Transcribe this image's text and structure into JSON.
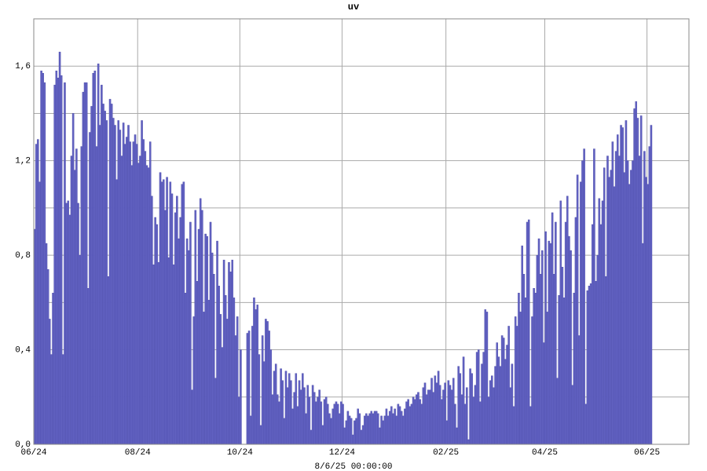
{
  "chart_data": {
    "type": "bar",
    "title": "uv",
    "xlabel": "8/6/25 00:00:00",
    "color": "#6262c2",
    "title_color": "#cc00cc",
    "grid": true,
    "ylim": [
      0,
      1.8
    ],
    "yticks": [
      {
        "value": 0,
        "label": "0,0"
      },
      {
        "value": 0.4,
        "label": "0,4"
      },
      {
        "value": 0.8,
        "label": "0,8"
      },
      {
        "value": 1.2,
        "label": "1,2"
      },
      {
        "value": 1.6,
        "label": "1,6"
      }
    ],
    "minor_yticks": [
      0.2,
      0.6,
      1.0,
      1.4,
      1.8
    ],
    "categories": [
      "06/24",
      null,
      null,
      null,
      null,
      null,
      null,
      null,
      null,
      null,
      null,
      null,
      null,
      null,
      null,
      null,
      null,
      null,
      null,
      null,
      null,
      null,
      null,
      null,
      null,
      null,
      null,
      null,
      null,
      null,
      null,
      null,
      null,
      null,
      null,
      null,
      null,
      null,
      null,
      null,
      null,
      null,
      null,
      null,
      null,
      null,
      null,
      null,
      null,
      null,
      null,
      null,
      null,
      null,
      null,
      null,
      null,
      null,
      null,
      null,
      null,
      null,
      "08/24",
      null,
      null,
      null,
      null,
      null,
      null,
      null,
      null,
      null,
      null,
      null,
      null,
      null,
      null,
      null,
      null,
      null,
      null,
      null,
      null,
      null,
      null,
      null,
      null,
      null,
      null,
      null,
      null,
      null,
      null,
      null,
      null,
      null,
      null,
      null,
      null,
      null,
      null,
      null,
      null,
      null,
      null,
      null,
      null,
      null,
      null,
      null,
      null,
      null,
      null,
      null,
      null,
      null,
      null,
      null,
      null,
      null,
      null,
      null,
      null,
      "10/24",
      null,
      null,
      null,
      null,
      null,
      null,
      null,
      null,
      null,
      null,
      null,
      null,
      null,
      null,
      null,
      null,
      null,
      null,
      null,
      null,
      null,
      null,
      null,
      null,
      null,
      null,
      null,
      null,
      null,
      null,
      null,
      null,
      null,
      null,
      null,
      null,
      null,
      null,
      null,
      null,
      null,
      null,
      null,
      null,
      null,
      null,
      null,
      null,
      null,
      null,
      null,
      null,
      null,
      null,
      null,
      null,
      null,
      null,
      null,
      null,
      "12/24",
      null,
      null,
      null,
      null,
      null,
      null,
      null,
      null,
      null,
      null,
      null,
      null,
      null,
      null,
      null,
      null,
      null,
      null,
      null,
      null,
      null,
      null,
      null,
      null,
      null,
      null,
      null,
      null,
      null,
      null,
      null,
      null,
      null,
      null,
      null,
      null,
      null,
      null,
      null,
      null,
      null,
      null,
      null,
      null,
      null,
      null,
      null,
      null,
      null,
      null,
      null,
      null,
      null,
      null,
      null,
      null,
      null,
      null,
      null,
      null,
      null,
      "02/25",
      null,
      null,
      null,
      null,
      null,
      null,
      null,
      null,
      null,
      null,
      null,
      null,
      null,
      null,
      null,
      null,
      null,
      null,
      null,
      null,
      null,
      null,
      null,
      null,
      null,
      null,
      null,
      null,
      null,
      null,
      null,
      null,
      null,
      null,
      null,
      null,
      null,
      null,
      null,
      null,
      null,
      null,
      null,
      null,
      null,
      null,
      null,
      null,
      null,
      null,
      null,
      null,
      null,
      null,
      null,
      null,
      null,
      null,
      "04/25",
      null,
      null,
      null,
      null,
      null,
      null,
      null,
      null,
      null,
      null,
      null,
      null,
      null,
      null,
      null,
      null,
      null,
      null,
      null,
      null,
      null,
      null,
      null,
      null,
      null,
      null,
      null,
      null,
      null,
      null,
      null,
      null,
      null,
      null,
      null,
      null,
      null,
      null,
      null,
      null,
      null,
      null,
      null,
      null,
      null,
      null,
      null,
      null,
      null,
      null,
      null,
      null,
      null,
      null,
      null,
      null,
      null,
      null,
      null,
      null,
      "06/25",
      null,
      null
    ],
    "values": [
      0.91,
      1.27,
      1.29,
      1.11,
      1.58,
      1.57,
      1.53,
      0.85,
      0.74,
      0.53,
      0.38,
      0.64,
      1.52,
      1.58,
      1.55,
      1.66,
      1.56,
      0.38,
      1.53,
      1.02,
      1.03,
      0.97,
      1.22,
      1.4,
      1.16,
      1.25,
      1.02,
      0.8,
      1.26,
      1.49,
      1.53,
      1.53,
      0.66,
      1.32,
      1.43,
      1.57,
      1.58,
      1.26,
      1.61,
      1.35,
      1.52,
      1.44,
      1.41,
      1.37,
      0.71,
      1.46,
      1.44,
      1.38,
      1.35,
      1.12,
      1.37,
      1.33,
      1.22,
      1.36,
      1.27,
      1.3,
      1.35,
      1.28,
      1.18,
      1.28,
      1.31,
      1.27,
      1.19,
      1.22,
      1.37,
      1.29,
      1.24,
      1.18,
      1.17,
      1.28,
      1.05,
      0.76,
      0.96,
      0.93,
      0.77,
      1.15,
      1.11,
      1.12,
      0.99,
      1.13,
      0.79,
      1.11,
      1.06,
      0.76,
      0.98,
      1.05,
      0.87,
      0.96,
      1.1,
      1.11,
      0.64,
      0.87,
      0.82,
      0.94,
      0.23,
      0.54,
      0.99,
      0.69,
      0.91,
      1.04,
      0.99,
      0.56,
      0.89,
      0.88,
      0.61,
      0.94,
      0.81,
      0.72,
      0.28,
      0.86,
      0.67,
      0.55,
      0.41,
      0.78,
      0.63,
      0.53,
      0.77,
      0.73,
      0.78,
      0.62,
      0.46,
      0.54,
      0.2,
      0.4,
      0,
      0,
      0,
      0.47,
      0.48,
      0.12,
      0.5,
      0.62,
      0.57,
      0.59,
      0.38,
      0.08,
      0.46,
      0.35,
      0.53,
      0.52,
      0.48,
      0.4,
      0.21,
      0.31,
      0.34,
      0.21,
      0.18,
      0.32,
      0.27,
      0.11,
      0.31,
      0.24,
      0.3,
      0.27,
      0.15,
      0.22,
      0.3,
      0.16,
      0.27,
      0.23,
      0.3,
      0.24,
      0.13,
      0.25,
      0.2,
      0.06,
      0.25,
      0.22,
      0.18,
      0.2,
      0.23,
      0.18,
      0.08,
      0.19,
      0.2,
      0.17,
      0.13,
      0.11,
      0.15,
      0.17,
      0.18,
      0.17,
      0.13,
      0.18,
      0.17,
      0.07,
      0.1,
      0.14,
      0.12,
      0.11,
      0.04,
      0.1,
      0.11,
      0.15,
      0.13,
      0.06,
      0.08,
      0.12,
      0.13,
      0.12,
      0.13,
      0.14,
      0.13,
      0.14,
      0.14,
      0.13,
      0.07,
      0.12,
      0.1,
      0.12,
      0.15,
      0.12,
      0.14,
      0.16,
      0.13,
      0.15,
      0.12,
      0.17,
      0.16,
      0.14,
      0.12,
      0.15,
      0.18,
      0.19,
      0.16,
      0.17,
      0.2,
      0.19,
      0.21,
      0.22,
      0.19,
      0.17,
      0.24,
      0.26,
      0.21,
      0.23,
      0.23,
      0.28,
      0.22,
      0.29,
      0.26,
      0.31,
      0.25,
      0.19,
      0.23,
      0.26,
      0.1,
      0.27,
      0.25,
      0.23,
      0.28,
      0.17,
      0.07,
      0.33,
      0.3,
      0.21,
      0.37,
      0.17,
      0.24,
      0.02,
      0.32,
      0.3,
      0.2,
      0.25,
      0.39,
      0.4,
      0.18,
      0.34,
      0.39,
      0.57,
      0.56,
      0.2,
      0.27,
      0.29,
      0.24,
      0.33,
      0.43,
      0.37,
      0.33,
      0.46,
      0.45,
      0.36,
      0.42,
      0.5,
      0.24,
      0.34,
      0.16,
      0.54,
      0.5,
      0.64,
      0.56,
      0.84,
      0.72,
      0.62,
      0.94,
      0.95,
      0.16,
      0.54,
      0.66,
      0.64,
      0.8,
      0.87,
      0.72,
      0.82,
      0.43,
      0.9,
      0.56,
      0.86,
      0.85,
      0.98,
      0.72,
      0.94,
      0.28,
      0.63,
      1.03,
      0.75,
      0.62,
      0.94,
      1.05,
      0.88,
      0.82,
      0.25,
      0.64,
      0.96,
      1.14,
      0.46,
      1.11,
      1.2,
      1.25,
      0.17,
      0.65,
      0.67,
      0.68,
      0.93,
      1.25,
      0.69,
      0.8,
      1.04,
      0.93,
      1.03,
      1.17,
      0.71,
      1.22,
      1.13,
      1.16,
      1.28,
      1.09,
      1.24,
      1.31,
      1.22,
      1.35,
      1.34,
      1.15,
      1.37,
      1.2,
      1.1,
      1.16,
      1.2,
      1.42,
      1.45,
      1.38,
      1.22,
      1.39,
      0.85,
      1.24,
      1.13,
      1.1,
      1.26,
      1.35
    ]
  }
}
